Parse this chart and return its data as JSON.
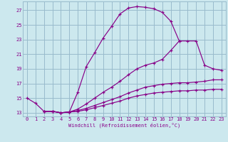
{
  "xlabel": "Windchill (Refroidissement éolien,°C)",
  "bg_color": "#cce8ee",
  "line_color": "#880088",
  "grid_color": "#99bbcc",
  "xlim": [
    -0.5,
    23.5
  ],
  "ylim": [
    12.5,
    28.2
  ],
  "yticks": [
    13,
    15,
    17,
    19,
    21,
    23,
    25,
    27
  ],
  "xticks": [
    0,
    1,
    2,
    3,
    4,
    5,
    6,
    7,
    8,
    9,
    10,
    11,
    12,
    13,
    14,
    15,
    16,
    17,
    18,
    19,
    20,
    21,
    22,
    23
  ],
  "curves": [
    {
      "x": [
        0,
        1,
        2,
        3,
        4,
        5,
        6,
        7,
        8,
        9,
        10,
        11,
        12,
        13,
        14,
        15,
        16,
        17,
        18
      ],
      "y": [
        15.0,
        14.3,
        13.2,
        13.2,
        13.0,
        13.1,
        15.8,
        19.3,
        21.2,
        23.2,
        24.8,
        26.5,
        27.3,
        27.5,
        27.4,
        27.2,
        26.7,
        25.5,
        22.8
      ]
    },
    {
      "x": [
        2,
        3,
        4,
        5,
        6,
        7,
        8,
        9,
        10,
        11,
        12,
        13,
        14,
        15,
        16,
        17,
        18,
        19,
        20,
        21,
        22,
        23
      ],
      "y": [
        13.2,
        13.2,
        13.0,
        13.1,
        13.5,
        14.2,
        15.0,
        15.8,
        16.5,
        17.3,
        18.2,
        19.0,
        19.5,
        19.8,
        20.3,
        21.5,
        22.8,
        22.8,
        22.8,
        19.5,
        19.0,
        18.8
      ]
    },
    {
      "x": [
        2,
        3,
        4,
        5,
        6,
        7,
        8,
        9,
        10,
        11,
        12,
        13,
        14,
        15,
        16,
        17,
        18,
        19,
        20,
        21,
        22,
        23
      ],
      "y": [
        13.2,
        13.2,
        13.0,
        13.1,
        13.3,
        13.6,
        14.0,
        14.4,
        14.8,
        15.2,
        15.7,
        16.1,
        16.5,
        16.7,
        16.9,
        17.0,
        17.1,
        17.1,
        17.2,
        17.3,
        17.5,
        17.5
      ]
    },
    {
      "x": [
        2,
        3,
        4,
        5,
        6,
        7,
        8,
        9,
        10,
        11,
        12,
        13,
        14,
        15,
        16,
        17,
        18,
        19,
        20,
        21,
        22,
        23
      ],
      "y": [
        13.2,
        13.2,
        13.0,
        13.1,
        13.2,
        13.4,
        13.7,
        14.0,
        14.3,
        14.6,
        15.0,
        15.3,
        15.5,
        15.7,
        15.8,
        15.9,
        16.0,
        16.0,
        16.1,
        16.1,
        16.2,
        16.2
      ]
    }
  ]
}
